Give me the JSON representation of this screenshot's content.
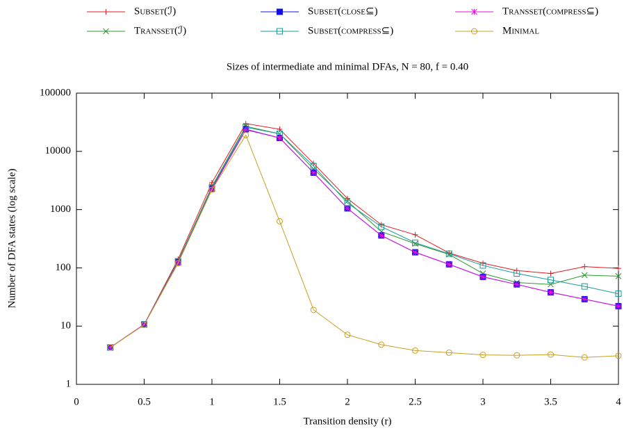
{
  "chart_data": {
    "type": "line",
    "title": "Sizes of intermediate and minimal DFAs, N = 80, f = 0.40",
    "x_label": "Transition density (r)",
    "y_label": "Number of DFA states (log scale)",
    "x": [
      0.25,
      0.5,
      0.75,
      1,
      1.25,
      1.5,
      1.75,
      2,
      2.25,
      2.5,
      2.75,
      3,
      3.25,
      3.5,
      3.75,
      4
    ],
    "xlim": [
      0,
      4
    ],
    "xticks": [
      0,
      0.5,
      1,
      1.5,
      2,
      2.5,
      3,
      3.5,
      4
    ],
    "ylim": [
      1,
      100000
    ],
    "yticks": [
      1,
      10,
      100,
      1000,
      10000,
      100000
    ],
    "y_scale": "log",
    "series": [
      {
        "name": "Subset(ℐ)",
        "color": "#e41a1c",
        "marker": "plus",
        "values": [
          4.3,
          10.7,
          140,
          2900,
          30000,
          24000,
          6200,
          1550,
          550,
          370,
          180,
          120,
          90,
          80,
          105,
          98
        ]
      },
      {
        "name": "Transset(ℐ)",
        "color": "#2e9a2e",
        "marker": "cross",
        "values": [
          4.3,
          10.7,
          130,
          2500,
          27000,
          20000,
          5000,
          1400,
          420,
          260,
          170,
          80,
          56,
          52,
          75,
          72
        ]
      },
      {
        "name": "Subset(close⊆)",
        "color": "#1010e0",
        "marker": "square-filled",
        "values": [
          4.3,
          10.7,
          125,
          2300,
          24000,
          17000,
          4300,
          1050,
          360,
          185,
          115,
          70,
          52,
          38,
          29,
          22
        ]
      },
      {
        "name": "Subset(compress⊆)",
        "color": "#1a9a9a",
        "marker": "square-open",
        "values": [
          4.3,
          10.7,
          130,
          2400,
          26000,
          20000,
          5600,
          1300,
          510,
          270,
          175,
          110,
          80,
          62,
          48,
          36
        ]
      },
      {
        "name": "Transset(compress⊆)",
        "color": "#e010e0",
        "marker": "star",
        "values": [
          4.3,
          10.7,
          122,
          2250,
          23500,
          17000,
          4300,
          1050,
          360,
          185,
          115,
          70,
          52,
          38,
          29,
          22
        ]
      },
      {
        "name": "Minimal",
        "color": "#c8a020",
        "marker": "circle-open",
        "values": [
          4.3,
          10.5,
          120,
          2200,
          19000,
          630,
          19,
          7.1,
          4.8,
          3.8,
          3.5,
          3.2,
          3.15,
          3.25,
          2.9,
          3.1
        ]
      }
    ]
  }
}
